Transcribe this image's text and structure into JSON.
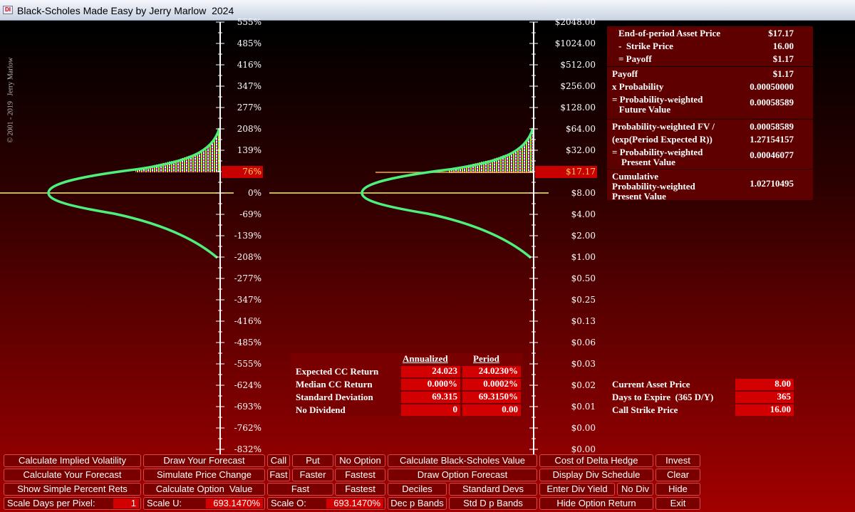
{
  "window": {
    "icon": "DI",
    "title": "Black-Scholes Made Easy by Jerry Marlow  2024"
  },
  "copyright": "© 2001 - 2019   Jerry Marlow",
  "return_axis": {
    "labels": [
      {
        "text": "555%"
      },
      {
        "text": "485%"
      },
      {
        "text": "416%"
      },
      {
        "text": "347%"
      },
      {
        "text": "277%"
      },
      {
        "text": "208%"
      },
      {
        "text": "139%"
      },
      {
        "text": "76%",
        "highlighted": true
      },
      {
        "text": "0%"
      },
      {
        "text": "-69%"
      },
      {
        "text": "-139%"
      },
      {
        "text": "-208%"
      },
      {
        "text": "-277%"
      },
      {
        "text": "-347%"
      },
      {
        "text": "-416%"
      },
      {
        "text": "-485%"
      },
      {
        "text": "-555%"
      },
      {
        "text": "-624%"
      },
      {
        "text": "-693%"
      },
      {
        "text": "-762%"
      },
      {
        "text": "-832%"
      }
    ]
  },
  "price_axis": {
    "labels": [
      {
        "text": "$2048.00"
      },
      {
        "text": "$1024.00"
      },
      {
        "text": "$512.00"
      },
      {
        "text": "$256.00"
      },
      {
        "text": "$128.00"
      },
      {
        "text": "$64.00"
      },
      {
        "text": "$32.00"
      },
      {
        "text": "$17.17",
        "highlighted": true
      },
      {
        "text": "$8.00"
      },
      {
        "text": "$4.00"
      },
      {
        "text": "$2.00"
      },
      {
        "text": "$1.00"
      },
      {
        "text": "$0.50"
      },
      {
        "text": "$0.25"
      },
      {
        "text": "$0.13"
      },
      {
        "text": "$0.06"
      },
      {
        "text": "$0.03"
      },
      {
        "text": "$0.02"
      },
      {
        "text": "$0.01"
      },
      {
        "text": "$0.00"
      },
      {
        "text": "$0.00"
      }
    ]
  },
  "payoff_panel": [
    {
      "rows": [
        [
          "End-of-period Asset Price",
          "$17.17"
        ],
        [
          "-  Strike Price",
          "16.00"
        ],
        [
          "= Payoff",
          "$1.17"
        ]
      ]
    },
    {
      "rows": [
        [
          "Payoff",
          "$1.17"
        ],
        [
          "x Probability",
          "0.00050000"
        ],
        [
          "= Probability-weighted\n   Future Value",
          "0.00058589"
        ]
      ]
    },
    {
      "rows": [
        [
          "Probability-weighted FV /",
          "0.00058589"
        ],
        [
          "(exp(Period Expected R))",
          "1.27154157"
        ],
        [
          "= Probability-weighted\n    Present Value",
          "0.00046077"
        ]
      ]
    },
    {
      "rows": [
        [
          "Cumulative\nProbability-weighted\nPresent Value",
          "1.02710495"
        ]
      ]
    }
  ],
  "stats_table": {
    "headers": [
      "Annualized",
      "Period"
    ],
    "rows": [
      [
        "Expected CC Return",
        "24.023",
        "24.0230%"
      ],
      [
        "Median CC Return",
        "0.000%",
        "0.0002%"
      ],
      [
        "Standard Deviation",
        "69.315",
        "69.3150%"
      ],
      [
        "No Dividend",
        "0",
        "0.00"
      ]
    ]
  },
  "inputs": [
    [
      "Current Asset Price",
      "8.00"
    ],
    [
      "Days to Expire  (365 D/Y)",
      "365"
    ],
    [
      "Call Strike Price",
      "16.00"
    ]
  ],
  "buttons": [
    [
      {
        "label": "Calculate Implied Volatility"
      },
      {
        "label": "Draw Your Forecast"
      },
      {
        "label": "Call"
      },
      {
        "label": "Put"
      },
      {
        "label": "No Option"
      },
      {
        "label": "Calculate Black-Scholes Value"
      },
      {
        "label": "Cost of Delta Hedge"
      },
      {
        "label": "Invest"
      }
    ],
    [
      {
        "label": "Calculate Your Forecast"
      },
      {
        "label": "Simulate Price Change"
      },
      {
        "label": "Fast"
      },
      {
        "label": "Faster"
      },
      {
        "label": "Fastest"
      },
      {
        "label": "Draw Option Forecast"
      },
      {
        "label": "Display Div Schedule"
      },
      {
        "label": "Clear"
      }
    ],
    [
      {
        "label": "Show Simple Percent Rets"
      },
      {
        "label": "Calculate Option  Value"
      },
      {
        "label": "Fast"
      },
      {
        "label": "Fastest"
      },
      {
        "label": "Deciles"
      },
      {
        "label": "Standard Devs"
      },
      {
        "label": "Enter Div Yield"
      },
      {
        "label": "No Div"
      },
      {
        "label": "Hide"
      }
    ],
    [
      {
        "label": "Scale Days per Pixel:",
        "value": "1"
      },
      {
        "label": "Scale U:",
        "value": "693.1470%"
      },
      {
        "label": "Scale O:",
        "value": "693.1470%"
      },
      {
        "label": "Dec p Bands"
      },
      {
        "label": "Std D p Bands"
      },
      {
        "label": "Hide Option Return"
      },
      {
        "label": "Exit"
      }
    ]
  ]
}
